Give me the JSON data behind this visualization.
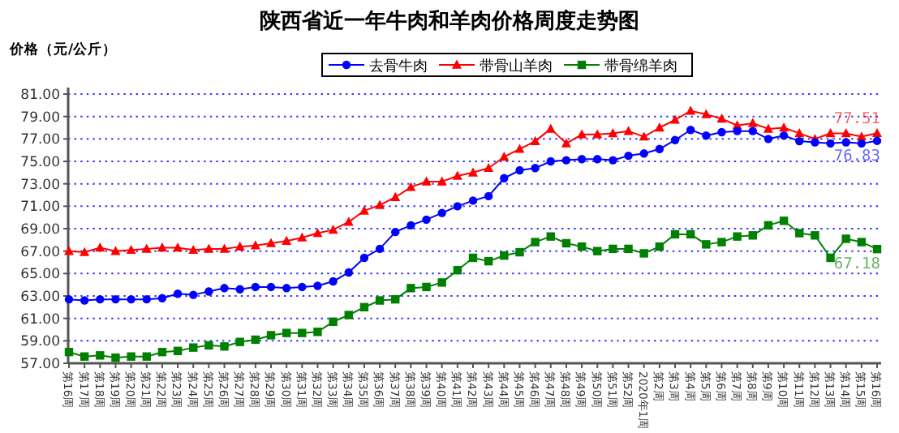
{
  "chart_data": {
    "type": "line",
    "title": "陕西省近一年牛肉和羊肉价格周度走势图",
    "ylabel": "价格（元/公斤）",
    "categories": [
      "第16周",
      "第17周",
      "第18周",
      "第19周",
      "第20周",
      "第21周",
      "第22周",
      "第23周",
      "第24周",
      "第25周",
      "第26周",
      "第27周",
      "第28周",
      "第29周",
      "第30周",
      "第31周",
      "第32周",
      "第33周",
      "第34周",
      "第35周",
      "第36周",
      "第37周",
      "第38周",
      "第39周",
      "第40周",
      "第41周",
      "第42周",
      "第43周",
      "第44周",
      "第45周",
      "第46周",
      "第47周",
      "第48周",
      "第49周",
      "第50周",
      "第51周",
      "第52周",
      "2020年1周",
      "第2周",
      "第3周",
      "第4周",
      "第5周",
      "第6周",
      "第7周",
      "第8周",
      "第9周",
      "第10周",
      "第11周",
      "第12周",
      "第13周",
      "第14周",
      "第15周",
      "第16周"
    ],
    "series": [
      {
        "name": "去骨牛肉",
        "color": "#0000ff",
        "marker": "circle",
        "values": [
          62.7,
          62.6,
          62.7,
          62.7,
          62.7,
          62.7,
          62.8,
          63.2,
          63.1,
          63.4,
          63.7,
          63.6,
          63.8,
          63.8,
          63.7,
          63.8,
          63.9,
          64.3,
          65.1,
          66.4,
          67.2,
          68.7,
          69.3,
          69.8,
          70.4,
          71.0,
          71.5,
          71.9,
          73.5,
          74.2,
          74.4,
          75.0,
          75.1,
          75.2,
          75.2,
          75.1,
          75.5,
          75.7,
          76.1,
          76.9,
          77.8,
          77.3,
          77.6,
          77.7,
          77.7,
          77.0,
          77.3,
          76.8,
          76.7,
          76.6,
          76.7,
          76.6,
          76.83
        ],
        "value_labels": [
          null,
          null,
          null,
          null,
          null,
          null,
          null,
          null,
          null,
          null,
          null,
          null,
          null,
          null,
          null,
          null,
          null,
          null,
          null,
          null,
          null,
          null,
          null,
          null,
          null,
          null,
          null,
          null,
          null,
          null,
          null,
          null,
          null,
          null,
          null,
          null,
          null,
          null,
          null,
          null,
          null,
          null,
          null,
          null,
          null,
          null,
          null,
          null,
          null,
          null,
          null,
          null,
          "76.83"
        ]
      },
      {
        "name": "带骨山羊肉",
        "color": "#ff0000",
        "marker": "triangle",
        "values": [
          67.0,
          66.9,
          67.3,
          67.0,
          67.1,
          67.2,
          67.3,
          67.3,
          67.1,
          67.2,
          67.2,
          67.4,
          67.5,
          67.7,
          67.9,
          68.2,
          68.6,
          68.9,
          69.6,
          70.6,
          71.1,
          71.8,
          72.7,
          73.2,
          73.2,
          73.7,
          74.0,
          74.4,
          75.4,
          76.1,
          76.8,
          77.9,
          76.6,
          77.4,
          77.4,
          77.5,
          77.7,
          77.2,
          78.0,
          78.7,
          79.5,
          79.2,
          78.8,
          78.2,
          78.4,
          77.9,
          78.0,
          77.5,
          77.0,
          77.5,
          77.5,
          77.2,
          77.51
        ],
        "value_labels": [
          null,
          null,
          null,
          null,
          null,
          null,
          null,
          null,
          null,
          null,
          null,
          null,
          null,
          null,
          null,
          null,
          null,
          null,
          null,
          null,
          null,
          null,
          null,
          null,
          null,
          null,
          null,
          null,
          null,
          null,
          null,
          null,
          null,
          null,
          null,
          null,
          null,
          null,
          null,
          null,
          null,
          null,
          null,
          null,
          null,
          null,
          null,
          null,
          null,
          null,
          null,
          null,
          "77.51"
        ]
      },
      {
        "name": "带骨绵羊肉",
        "color": "#008000",
        "marker": "square",
        "values": [
          58.0,
          57.6,
          57.7,
          57.5,
          57.6,
          57.6,
          58.0,
          58.1,
          58.4,
          58.6,
          58.5,
          58.9,
          59.1,
          59.5,
          59.7,
          59.7,
          59.8,
          60.7,
          61.3,
          62.0,
          62.6,
          62.7,
          63.7,
          63.8,
          64.2,
          65.3,
          66.4,
          66.1,
          66.6,
          66.9,
          67.8,
          68.3,
          67.7,
          67.4,
          67.0,
          67.2,
          67.2,
          66.8,
          67.4,
          68.5,
          68.5,
          67.6,
          67.8,
          68.3,
          68.4,
          69.3,
          69.7,
          68.6,
          68.4,
          66.4,
          68.1,
          67.8,
          67.18
        ],
        "value_labels": [
          null,
          null,
          null,
          null,
          null,
          null,
          null,
          null,
          null,
          null,
          null,
          null,
          null,
          null,
          null,
          null,
          null,
          null,
          null,
          null,
          null,
          null,
          null,
          null,
          null,
          null,
          null,
          null,
          null,
          null,
          null,
          null,
          null,
          null,
          null,
          null,
          null,
          null,
          null,
          null,
          null,
          null,
          null,
          null,
          null,
          null,
          null,
          null,
          null,
          null,
          null,
          null,
          "67.18"
        ]
      }
    ],
    "ylim": [
      57,
      81
    ],
    "yticks": [
      {
        "value": 57,
        "label": "57.00"
      },
      {
        "value": 59,
        "label": "59.00"
      },
      {
        "value": 61,
        "label": "61.00"
      },
      {
        "value": 63,
        "label": "63.00"
      },
      {
        "value": 65,
        "label": "65.00"
      },
      {
        "value": 67,
        "label": "67.00"
      },
      {
        "value": 69,
        "label": "69.00"
      },
      {
        "value": 71,
        "label": "71.00"
      },
      {
        "value": 73,
        "label": "73.00"
      },
      {
        "value": 75,
        "label": "75.00"
      },
      {
        "value": 77,
        "label": "77.00"
      },
      {
        "value": 79,
        "label": "79.00"
      },
      {
        "value": 81,
        "label": "81.00"
      }
    ],
    "grid": "y",
    "legend": "top",
    "line_style": "solid"
  }
}
